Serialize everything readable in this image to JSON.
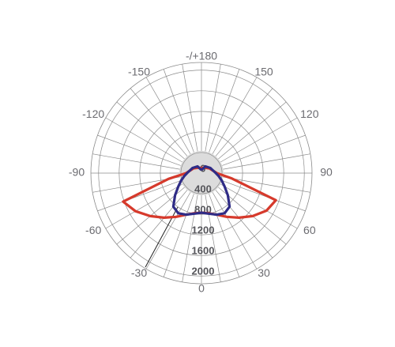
{
  "chart_data": {
    "type": "polar",
    "angle_labels": [
      {
        "value": 180,
        "label": "-/+180"
      },
      {
        "value": -150,
        "label": "-150"
      },
      {
        "value": 150,
        "label": "150"
      },
      {
        "value": -120,
        "label": "-120"
      },
      {
        "value": 120,
        "label": "120"
      },
      {
        "value": -90,
        "label": "-90"
      },
      {
        "value": 90,
        "label": "90"
      },
      {
        "value": -60,
        "label": "-60"
      },
      {
        "value": 60,
        "label": "60"
      },
      {
        "value": -30,
        "label": "-30"
      },
      {
        "value": 30,
        "label": "30"
      },
      {
        "value": 0,
        "label": "0"
      }
    ],
    "rlim": [
      0,
      2150
    ],
    "rticks": [
      0,
      400,
      800,
      1200,
      1600,
      2000
    ],
    "x": [
      -180,
      -150,
      -120,
      -90,
      -80,
      -70,
      -60,
      -50,
      -40,
      -30,
      -20,
      -10,
      0,
      10,
      20,
      30,
      40,
      50,
      60,
      70,
      80,
      90,
      120,
      150,
      180
    ],
    "series": [
      {
        "color": "#d63a2c",
        "values": [
          100,
          120,
          180,
          300,
          650,
          1620,
          1480,
          1300,
          1130,
          980,
          860,
          790,
          770,
          790,
          860,
          980,
          1130,
          1300,
          1460,
          1540,
          600,
          300,
          180,
          120,
          100
        ]
      },
      {
        "color": "#2f2c86",
        "values": [
          60,
          150,
          200,
          280,
          340,
          420,
          520,
          670,
          850,
          900,
          860,
          800,
          770,
          800,
          860,
          900,
          850,
          670,
          520,
          420,
          340,
          280,
          200,
          150,
          60
        ]
      }
    ]
  }
}
